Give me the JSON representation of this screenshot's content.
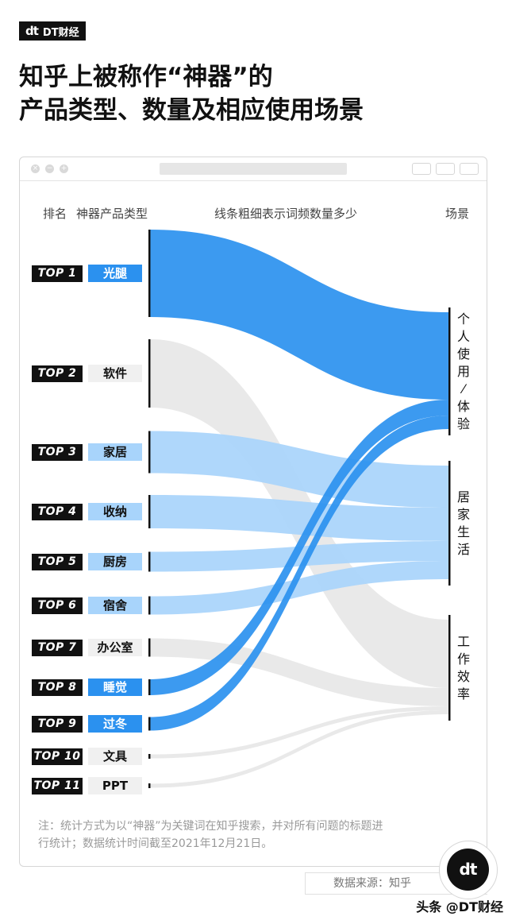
{
  "brand": {
    "logo_mark": "dt",
    "logo_text": "DT财经",
    "circle_mark": "dt",
    "watermark_text": "头条 @DT财经"
  },
  "title": {
    "line1": "知乎上被称作“神器”的",
    "line2": "产品类型、数量及相应使用场景"
  },
  "headers": {
    "rank": "排名",
    "category": "神器产品类型",
    "width_note": "线条粗细表示词频数量多少",
    "scene": "场景"
  },
  "colors": {
    "blue_dark": "#2b91ef",
    "blue_light": "#a8d4fb",
    "gray": "#e5e5e5",
    "badge_bg": "#111111"
  },
  "chart_data": {
    "type": "sankey",
    "title": "知乎上被称作“神器”的产品类型、数量及相应使用场景",
    "sources": [
      {
        "rank": "TOP 1",
        "name": "光腿",
        "target": "个人使用/体验",
        "weight": 110,
        "highlight": "blue_dark"
      },
      {
        "rank": "TOP 2",
        "name": "软件",
        "target": "工作效率",
        "weight": 86,
        "highlight": "none"
      },
      {
        "rank": "TOP 3",
        "name": "家居",
        "target": "居家生活",
        "weight": 53,
        "highlight": "blue_light"
      },
      {
        "rank": "TOP 4",
        "name": "收纳",
        "target": "居家生活",
        "weight": 42,
        "highlight": "blue_light"
      },
      {
        "rank": "TOP 5",
        "name": "厨房",
        "target": "居家生活",
        "weight": 25,
        "highlight": "blue_light"
      },
      {
        "rank": "TOP 6",
        "name": "宿舍",
        "target": "居家生活",
        "weight": 23,
        "highlight": "blue_light"
      },
      {
        "rank": "TOP 7",
        "name": "办公室",
        "target": "工作效率",
        "weight": 23,
        "highlight": "none"
      },
      {
        "rank": "TOP 8",
        "name": "睡觉",
        "target": "个人使用/体验",
        "weight": 20,
        "highlight": "blue_dark"
      },
      {
        "rank": "TOP 9",
        "name": "过冬",
        "target": "个人使用/体验",
        "weight": 17,
        "highlight": "blue_dark"
      },
      {
        "rank": "TOP 10",
        "name": "文具",
        "target": "工作效率",
        "weight": 5,
        "highlight": "none"
      },
      {
        "rank": "TOP 11",
        "name": "PPT",
        "target": "工作效率",
        "weight": 5,
        "highlight": "none"
      }
    ],
    "targets": [
      "个人使用/体验",
      "居家生活",
      "工作效率"
    ]
  },
  "note": "注：统计方式为以“神器”为关键词在知乎搜索，并对所有问题的标题进行统计；数据统计时间截至2021年12月21日。",
  "source": "数据来源：知乎"
}
